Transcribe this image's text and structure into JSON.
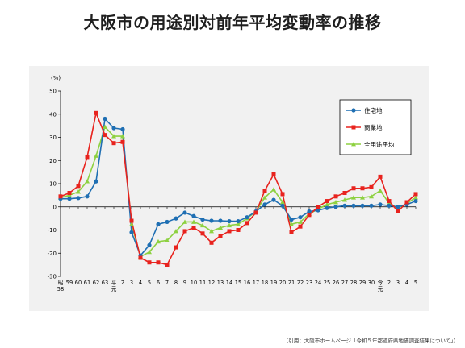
{
  "title": "大阪市の用途別対前年平均変動率の推移",
  "citation": "（引用：大阪市ホームページ「令和５年都道府県地価調査結果について」）",
  "chart_data": {
    "type": "line",
    "unit_label": "(%)",
    "ylim": [
      -30,
      50
    ],
    "yticks": [
      -30,
      -20,
      -10,
      0,
      10,
      20,
      30,
      40,
      50
    ],
    "grid": false,
    "legend_position": "top-right",
    "x_tick_labels": [
      [
        "昭",
        "58"
      ],
      [
        "59"
      ],
      [
        "60"
      ],
      [
        "61"
      ],
      [
        "62"
      ],
      [
        "63"
      ],
      [
        "平",
        "元"
      ],
      [
        "2"
      ],
      [
        "3"
      ],
      [
        "4"
      ],
      [
        "5"
      ],
      [
        "6"
      ],
      [
        "7"
      ],
      [
        "8"
      ],
      [
        "9"
      ],
      [
        "10"
      ],
      [
        "11"
      ],
      [
        "12"
      ],
      [
        "13"
      ],
      [
        "14"
      ],
      [
        "15"
      ],
      [
        "16"
      ],
      [
        "17"
      ],
      [
        "18"
      ],
      [
        "19"
      ],
      [
        "20"
      ],
      [
        "21"
      ],
      [
        "22"
      ],
      [
        "23"
      ],
      [
        "24"
      ],
      [
        "25"
      ],
      [
        "26"
      ],
      [
        "27"
      ],
      [
        "28"
      ],
      [
        "29"
      ],
      [
        "30"
      ],
      [
        "令",
        "元"
      ],
      [
        "2"
      ],
      [
        "3"
      ],
      [
        "4"
      ],
      [
        "5"
      ]
    ],
    "series": [
      {
        "name": "住宅地",
        "color": "#1f6fb3",
        "marker": "circle",
        "values": [
          3.5,
          3.5,
          3.8,
          4.5,
          11,
          38,
          34,
          33.5,
          -11,
          -21,
          -16.5,
          -7.5,
          -6.5,
          -5,
          -2.5,
          -4,
          -5.5,
          -6,
          -6,
          -6.2,
          -6.2,
          -4.5,
          -2,
          1,
          3,
          0.5,
          -5.5,
          -4.5,
          -2,
          -1.5,
          -0.5,
          0,
          0.5,
          0.5,
          0.5,
          0.5,
          1,
          0.5,
          0,
          1,
          2.5
        ]
      },
      {
        "name": "商業地",
        "color": "#e8231e",
        "marker": "square",
        "values": [
          4.5,
          6,
          9,
          21.5,
          40.5,
          31,
          27.5,
          28,
          -6,
          -22,
          -24,
          -24,
          -25,
          -17.5,
          -10.5,
          -9,
          -11.5,
          -15.5,
          -12.5,
          -10.5,
          -10,
          -7,
          -2.5,
          7,
          14,
          5.5,
          -11,
          -8.5,
          -3.5,
          0,
          2.5,
          4.5,
          6,
          8,
          8,
          8.5,
          13,
          2.5,
          -2,
          2,
          5.5
        ]
      },
      {
        "name": "全用途平均",
        "color": "#8dd140",
        "marker": "triangle",
        "values": [
          4,
          5,
          6.5,
          11,
          22,
          34.5,
          30.5,
          30.5,
          -7.5,
          -21.5,
          -19.5,
          -15,
          -14.5,
          -10.5,
          -6.5,
          -6.5,
          -8,
          -10.5,
          -9,
          -8,
          -7.5,
          -5,
          -2,
          4,
          7.5,
          2,
          -7.5,
          -6.5,
          -3,
          -1,
          1,
          2,
          3,
          4,
          4,
          4.5,
          7,
          1.5,
          -0.5,
          1.5,
          4
        ]
      }
    ]
  }
}
